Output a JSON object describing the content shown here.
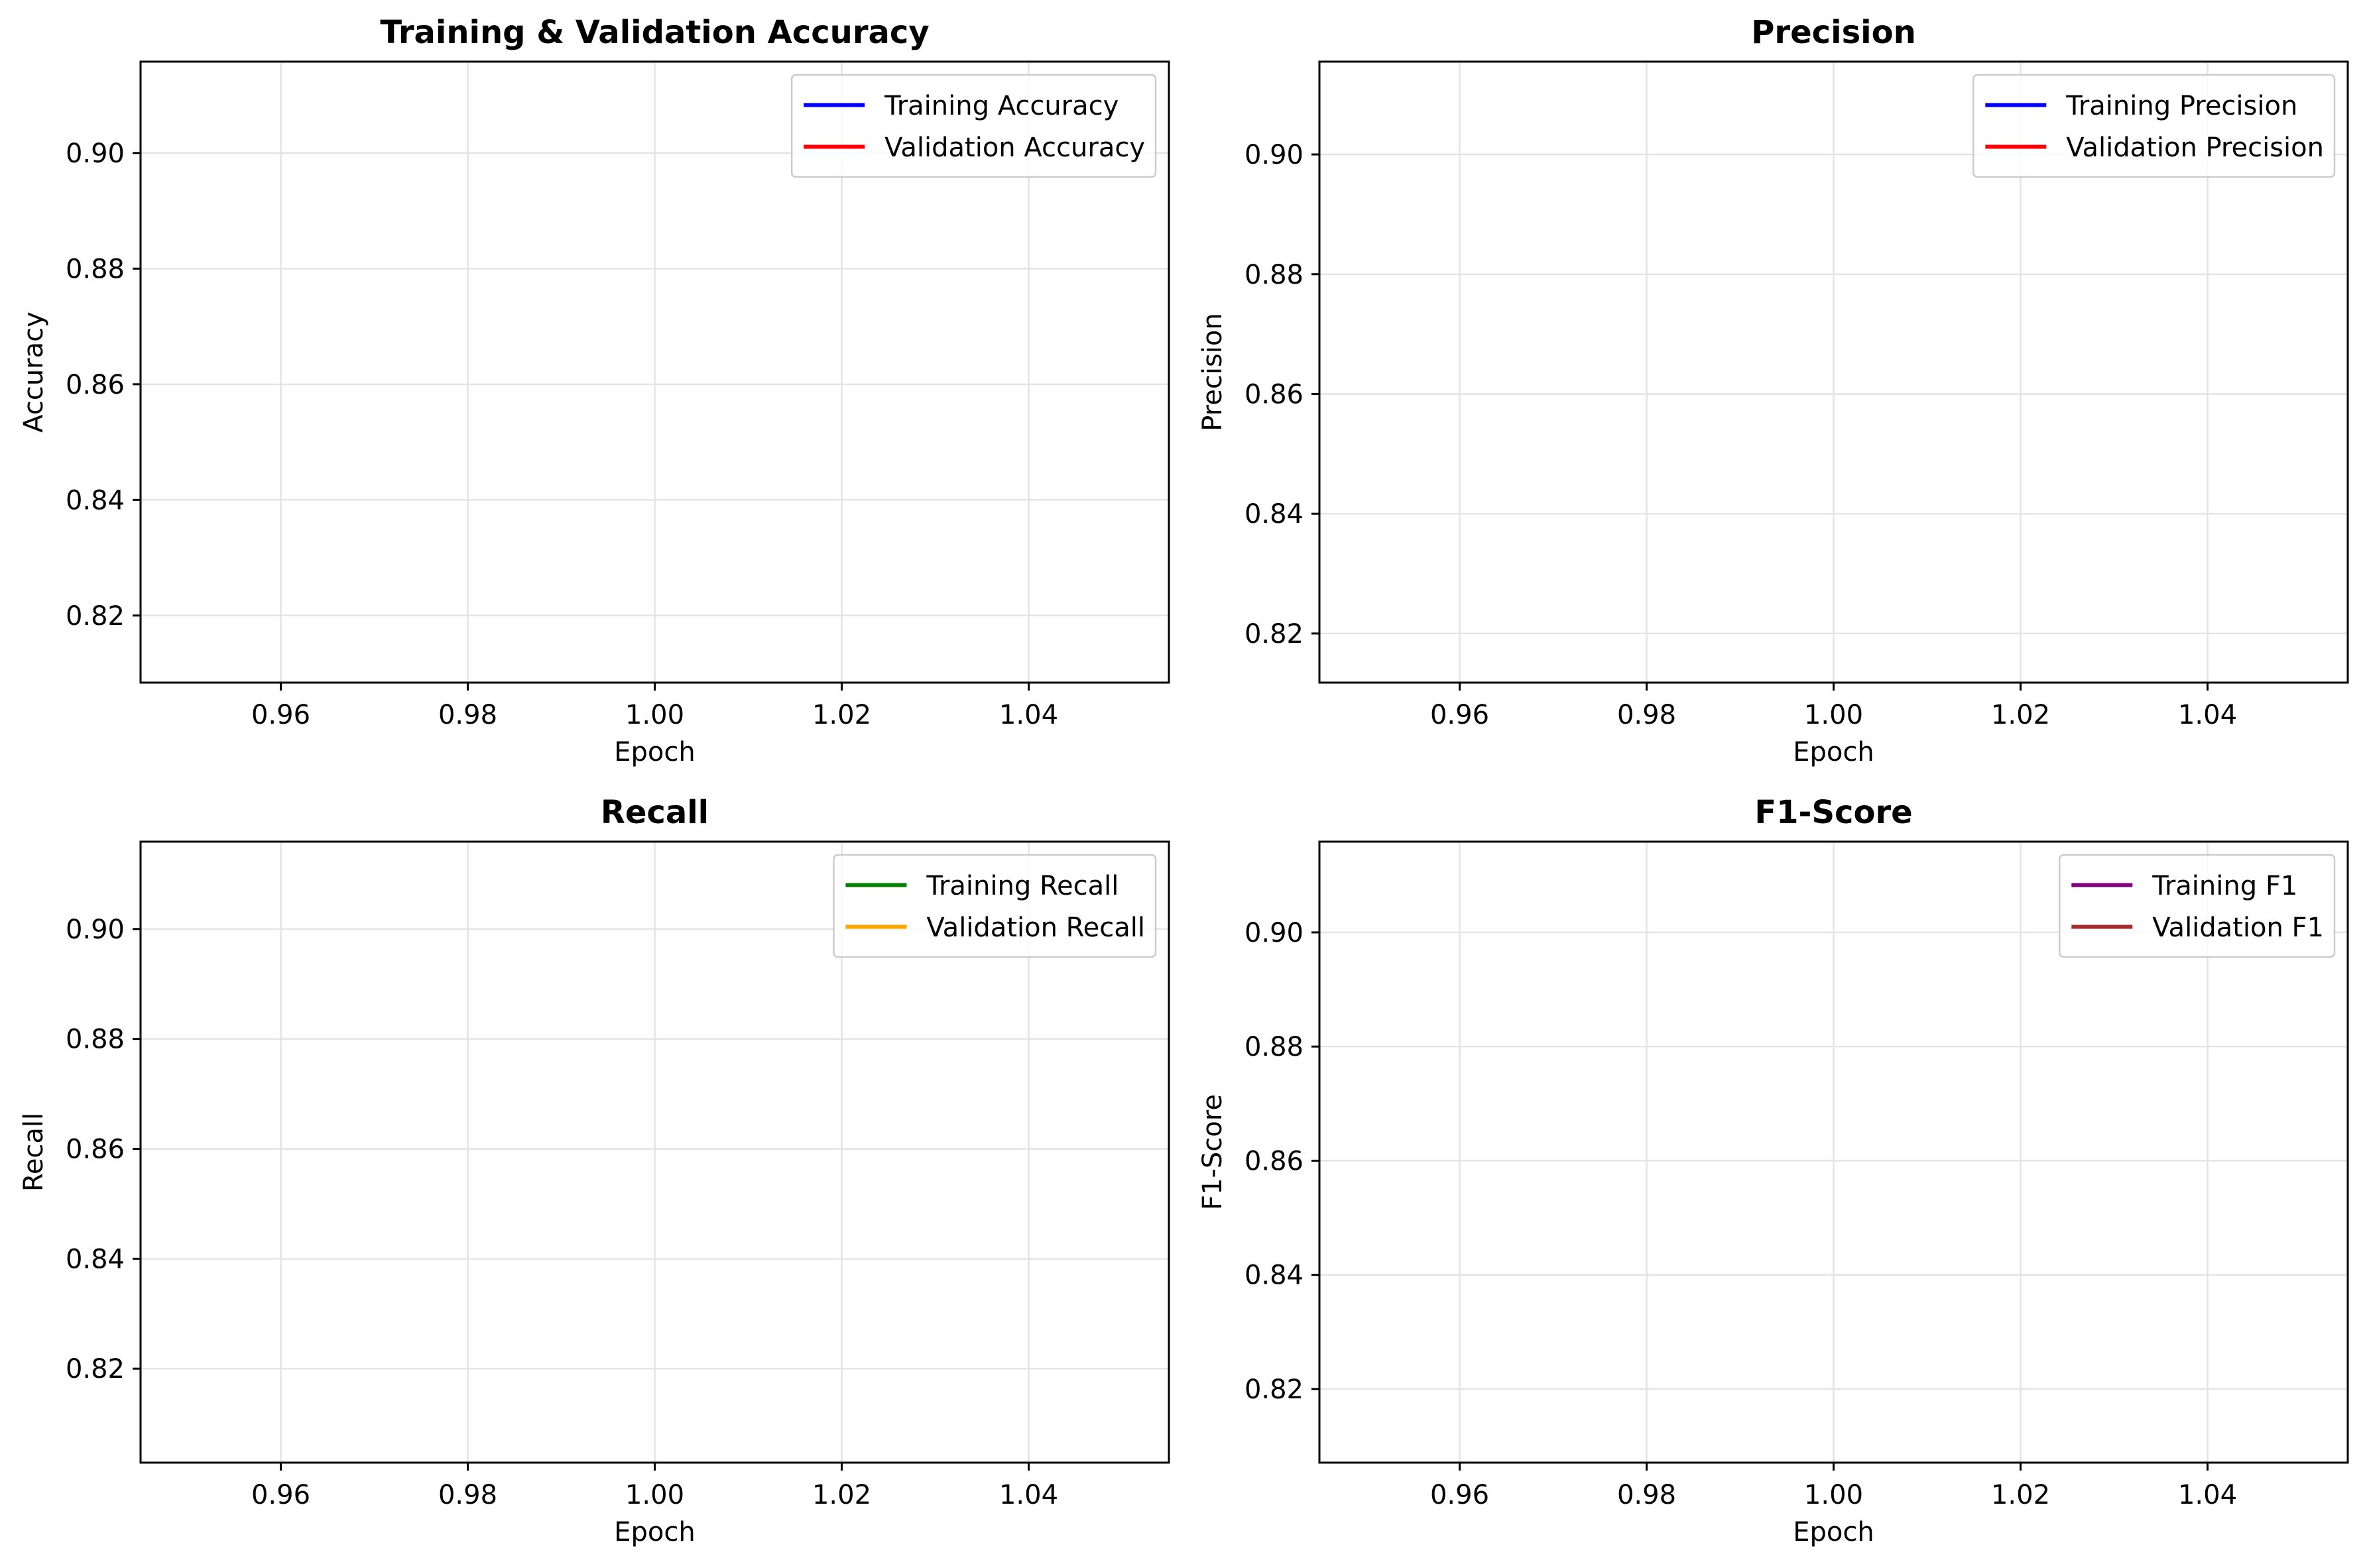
{
  "chart_data": [
    {
      "type": "line",
      "title": "Training & Validation Accuracy",
      "xlabel": "Epoch",
      "ylabel": "Accuracy",
      "xlim": [
        0.945,
        1.055
      ],
      "ylim": [
        0.8084,
        0.9158
      ],
      "xticks": [
        0.96,
        0.98,
        1.0,
        1.02,
        1.04
      ],
      "xtick_labels": [
        "0.96",
        "0.98",
        "1.00",
        "1.02",
        "1.04"
      ],
      "yticks": [
        0.82,
        0.84,
        0.86,
        0.88,
        0.9
      ],
      "ytick_labels": [
        "0.82",
        "0.84",
        "0.86",
        "0.88",
        "0.90"
      ],
      "grid": true,
      "legend_position": "top-right",
      "series": [
        {
          "name": "Training Accuracy",
          "color": "#0000ff",
          "x": [],
          "y": []
        },
        {
          "name": "Validation Accuracy",
          "color": "#ff0000",
          "x": [],
          "y": []
        }
      ]
    },
    {
      "type": "line",
      "title": "Precision",
      "xlabel": "Epoch",
      "ylabel": "Precision",
      "xlim": [
        0.945,
        1.055
      ],
      "ylim": [
        0.8118,
        0.9155
      ],
      "xticks": [
        0.96,
        0.98,
        1.0,
        1.02,
        1.04
      ],
      "xtick_labels": [
        "0.96",
        "0.98",
        "1.00",
        "1.02",
        "1.04"
      ],
      "yticks": [
        0.82,
        0.84,
        0.86,
        0.88,
        0.9
      ],
      "ytick_labels": [
        "0.82",
        "0.84",
        "0.86",
        "0.88",
        "0.90"
      ],
      "grid": true,
      "legend_position": "top-right",
      "series": [
        {
          "name": "Training Precision",
          "color": "#0000ff",
          "x": [],
          "y": []
        },
        {
          "name": "Validation Precision",
          "color": "#ff0000",
          "x": [],
          "y": []
        }
      ]
    },
    {
      "type": "line",
      "title": "Recall",
      "xlabel": "Epoch",
      "ylabel": "Recall",
      "xlim": [
        0.945,
        1.055
      ],
      "ylim": [
        0.8029,
        0.9159
      ],
      "xticks": [
        0.96,
        0.98,
        1.0,
        1.02,
        1.04
      ],
      "xtick_labels": [
        "0.96",
        "0.98",
        "1.00",
        "1.02",
        "1.04"
      ],
      "yticks": [
        0.82,
        0.84,
        0.86,
        0.88,
        0.9
      ],
      "ytick_labels": [
        "0.82",
        "0.84",
        "0.86",
        "0.88",
        "0.90"
      ],
      "grid": true,
      "legend_position": "top-right",
      "series": [
        {
          "name": "Training Recall",
          "color": "#008000",
          "x": [],
          "y": []
        },
        {
          "name": "Validation Recall",
          "color": "#ffa500",
          "x": [],
          "y": []
        }
      ]
    },
    {
      "type": "line",
      "title": "F1-Score",
      "xlabel": "Epoch",
      "ylabel": "F1-Score",
      "xlim": [
        0.945,
        1.055
      ],
      "ylim": [
        0.8071,
        0.9159
      ],
      "xticks": [
        0.96,
        0.98,
        1.0,
        1.02,
        1.04
      ],
      "xtick_labels": [
        "0.96",
        "0.98",
        "1.00",
        "1.02",
        "1.04"
      ],
      "yticks": [
        0.82,
        0.84,
        0.86,
        0.88,
        0.9
      ],
      "ytick_labels": [
        "0.82",
        "0.84",
        "0.86",
        "0.88",
        "0.90"
      ],
      "grid": true,
      "legend_position": "top-right",
      "series": [
        {
          "name": "Training F1",
          "color": "#800080",
          "x": [],
          "y": []
        },
        {
          "name": "Validation F1",
          "color": "#a52a2a",
          "x": [],
          "y": []
        }
      ]
    }
  ]
}
